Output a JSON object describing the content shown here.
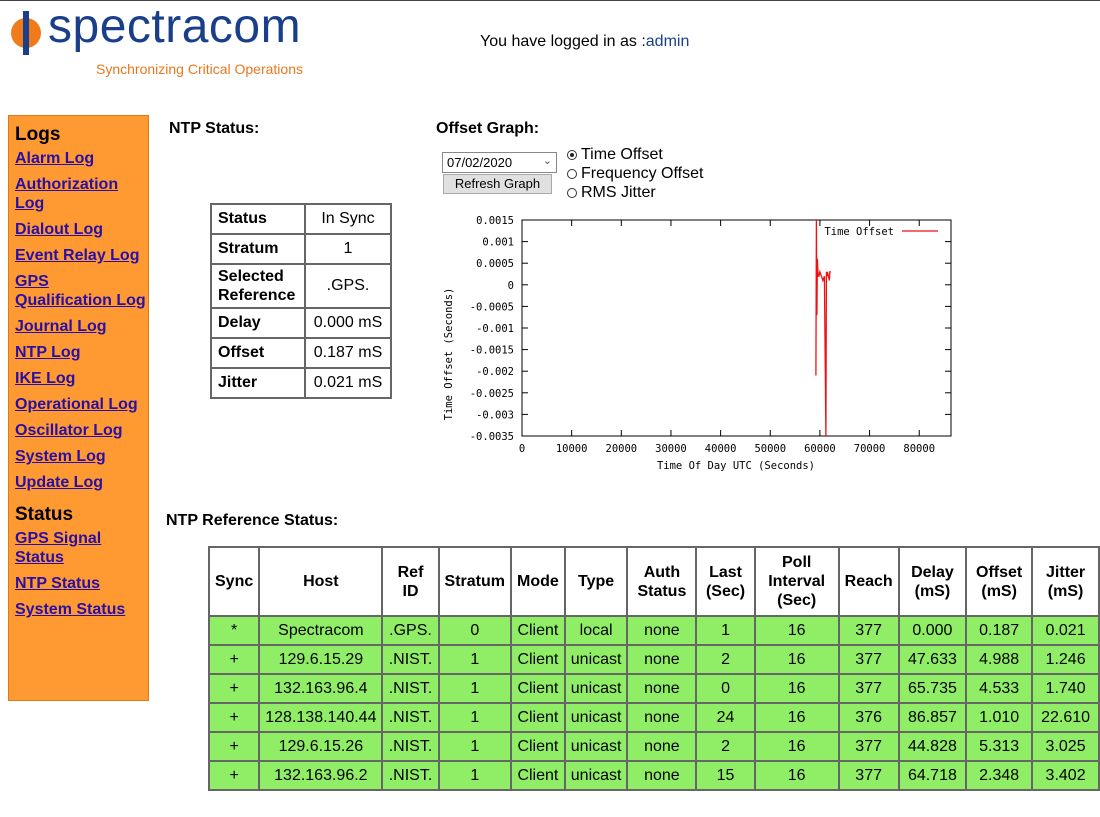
{
  "header": {
    "logo_text": "spectracom",
    "tagline": "Synchronizing Critical Operations",
    "login_prefix": "You have logged in as :",
    "login_user": "admin"
  },
  "sidebar": {
    "logs_heading": "Logs",
    "logs": [
      "Alarm Log",
      "Authorization Log",
      "Dialout Log",
      "Event Relay Log",
      "GPS Qualification Log",
      "Journal Log",
      "NTP Log",
      "IKE Log",
      "Operational Log",
      "Oscillator Log",
      "System Log",
      "Update Log"
    ],
    "status_heading": "Status",
    "status_links": [
      "GPS Signal Status",
      "NTP Status",
      "System Status"
    ]
  },
  "ntp_status": {
    "title": "NTP Status:",
    "rows": [
      {
        "label": "Status",
        "value": "In Sync"
      },
      {
        "label": "Stratum",
        "value": "1"
      },
      {
        "label": "Selected Reference",
        "value": ".GPS."
      },
      {
        "label": "Delay",
        "value": "0.000 mS"
      },
      {
        "label": "Offset",
        "value": "0.187 mS"
      },
      {
        "label": "Jitter",
        "value": "0.021 mS"
      }
    ]
  },
  "offset_graph": {
    "title": "Offset Graph:",
    "date_value": "07/02/2020",
    "refresh_label": "Refresh Graph",
    "options": [
      "Time Offset",
      "Frequency Offset",
      "RMS Jitter"
    ],
    "selected_option": "Time Offset"
  },
  "chart_data": {
    "type": "line",
    "xlabel": "Time Of Day UTC (Seconds)",
    "ylabel": "Time Offset (Seconds)",
    "legend": "Time Offset",
    "legend_position": "top-right",
    "line_color": "#ee1111",
    "xlim": [
      0,
      86400
    ],
    "ylim": [
      -0.0035,
      0.0015
    ],
    "x_ticks": [
      "0",
      "10000",
      "20000",
      "30000",
      "40000",
      "50000",
      "60000",
      "70000",
      "80000"
    ],
    "x_tick_values": [
      0,
      10000,
      20000,
      30000,
      40000,
      50000,
      60000,
      70000,
      80000
    ],
    "y_ticks": [
      "0.0015",
      "0.001",
      "0.0005",
      "0",
      "-0.0005",
      "-0.001",
      "-0.0015",
      "-0.002",
      "-0.0025",
      "-0.003",
      "-0.0035"
    ],
    "y_tick_values": [
      0.0015,
      0.001,
      0.0005,
      0,
      -0.0005,
      -0.001,
      -0.0015,
      -0.002,
      -0.0025,
      -0.003,
      -0.0035
    ],
    "x": [
      59200,
      59300,
      59400,
      59500,
      59600,
      59700,
      59800,
      60000,
      60300,
      60600,
      60900,
      61200,
      61300,
      61400,
      61500,
      61700,
      61900,
      62000,
      62200
    ],
    "y": [
      -0.0021,
      0.0015,
      -0.0007,
      0.0006,
      0.0003,
      0.0002,
      0.0002,
      0.0003,
      0.0002,
      0.0001,
      0.0002,
      -0.0035,
      0.0003,
      0.0002,
      0.0003,
      0.0002,
      0.0001,
      0.0003,
      0.0003
    ]
  },
  "ref_status": {
    "title": "NTP Reference Status:",
    "headers": [
      "Sync",
      "Host",
      "Ref ID",
      "Stratum",
      "Mode",
      "Type",
      "Auth Status",
      "Last (Sec)",
      "Poll Interval (Sec)",
      "Reach",
      "Delay (mS)",
      "Offset (mS)",
      "Jitter (mS)"
    ],
    "rows": [
      [
        "*",
        "Spectracom",
        ".GPS.",
        "0",
        "Client",
        "local",
        "none",
        "1",
        "16",
        "377",
        "0.000",
        "0.187",
        "0.021"
      ],
      [
        "+",
        "129.6.15.29",
        ".NIST.",
        "1",
        "Client",
        "unicast",
        "none",
        "2",
        "16",
        "377",
        "47.633",
        "4.988",
        "1.246"
      ],
      [
        "+",
        "132.163.96.4",
        ".NIST.",
        "1",
        "Client",
        "unicast",
        "none",
        "0",
        "16",
        "377",
        "65.735",
        "4.533",
        "1.740"
      ],
      [
        "+",
        "128.138.140.44",
        ".NIST.",
        "1",
        "Client",
        "unicast",
        "none",
        "24",
        "16",
        "376",
        "86.857",
        "1.010",
        "22.610"
      ],
      [
        "+",
        "129.6.15.26",
        ".NIST.",
        "1",
        "Client",
        "unicast",
        "none",
        "2",
        "16",
        "377",
        "44.828",
        "5.313",
        "3.025"
      ],
      [
        "+",
        "132.163.96.2",
        ".NIST.",
        "1",
        "Client",
        "unicast",
        "none",
        "15",
        "16",
        "377",
        "64.718",
        "2.348",
        "3.402"
      ]
    ]
  }
}
